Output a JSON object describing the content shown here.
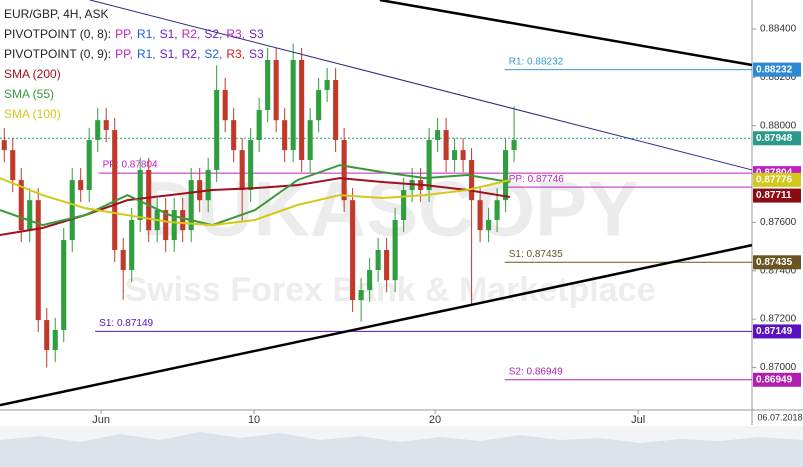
{
  "chart_data": {
    "type": "candlestick",
    "title": "EUR/GBP, 4H, ASK",
    "pivot_legend": [
      {
        "label": "PIVOTPOINT (0, 8):",
        "items": [
          "PP,",
          "R1,",
          "S1,",
          "R2,",
          "S2,",
          "R3,",
          "S3"
        ],
        "colors": [
          "#c020c0",
          "#1f5fd0",
          "#6a1fc9",
          "#c020c0",
          "#6a1fc9",
          "#c020c0",
          "#6a1fc9"
        ]
      },
      {
        "label": "PIVOTPOINT (0, 9):",
        "items": [
          "PP,",
          "R1,",
          "S1,",
          "R2,",
          "S2,",
          "R3,",
          "S3"
        ],
        "colors": [
          "#c020c0",
          "#1f5fd0",
          "#6a1fc9",
          "#6a1fc9",
          "#1f5fd0",
          "#d02020",
          "#6a1fc9"
        ]
      }
    ],
    "watermark": [
      "DUKASCOPY",
      "Swiss Forex Bank & Marketplace"
    ],
    "up_color": "#2e9e3e",
    "down_color": "#c0392b",
    "open": [
      0.8794,
      0.87899,
      0.87775,
      0.87568,
      0.87692,
      0.87196,
      0.87072,
      0.87155,
      0.87527,
      0.87775,
      0.87734,
      0.87941,
      0.88023,
      0.87982,
      0.87486,
      0.87403,
      0.8761,
      0.87817,
      0.87568,
      0.87651,
      0.87527,
      0.87651,
      0.87568,
      0.87775,
      0.87692,
      0.87817,
      0.88148,
      0.88023,
      0.87899,
      0.87734,
      0.87941,
      0.88065,
      0.88272,
      0.88023,
      0.87899,
      0.88272,
      0.87858,
      0.88023,
      0.88148,
      0.88189,
      0.87941,
      0.87692,
      0.87279,
      0.8732,
      0.87403,
      0.87486,
      0.87361,
      0.8761,
      0.87734,
      0.87775,
      0.87734,
      0.87941,
      0.87982,
      0.87858,
      0.87899,
      0.87858,
      0.87692,
      0.87568,
      0.8761,
      0.87692,
      0.87899
    ],
    "high": [
      0.8799,
      0.87949,
      0.87825,
      0.87742,
      0.87742,
      0.87246,
      0.87205,
      0.87577,
      0.87825,
      0.87825,
      0.87991,
      0.88073,
      0.88073,
      0.88032,
      0.87536,
      0.8766,
      0.87867,
      0.87867,
      0.87701,
      0.87701,
      0.87701,
      0.87701,
      0.87825,
      0.87825,
      0.87867,
      0.8825,
      0.88198,
      0.88073,
      0.87949,
      0.87991,
      0.88115,
      0.88322,
      0.88322,
      0.88073,
      0.8834,
      0.88322,
      0.88073,
      0.88198,
      0.88239,
      0.88239,
      0.87991,
      0.87742,
      0.8737,
      0.87453,
      0.87536,
      0.87536,
      0.8766,
      0.87784,
      0.87825,
      0.87825,
      0.87991,
      0.88032,
      0.88032,
      0.87949,
      0.87949,
      0.87908,
      0.87742,
      0.8766,
      0.87742,
      0.87949,
      0.8808
    ],
    "low": [
      0.87849,
      0.87725,
      0.87518,
      0.87518,
      0.87146,
      0.87,
      0.87022,
      0.87105,
      0.87477,
      0.87684,
      0.87684,
      0.87891,
      0.87932,
      0.87436,
      0.8728,
      0.87353,
      0.8756,
      0.87518,
      0.87518,
      0.87477,
      0.87477,
      0.87518,
      0.87518,
      0.87642,
      0.87642,
      0.87767,
      0.87973,
      0.87849,
      0.876,
      0.87684,
      0.87891,
      0.88015,
      0.87973,
      0.87849,
      0.87849,
      0.87808,
      0.87808,
      0.87973,
      0.88098,
      0.87891,
      0.87642,
      0.87229,
      0.8719,
      0.8727,
      0.87353,
      0.87311,
      0.87311,
      0.8756,
      0.87684,
      0.87684,
      0.87684,
      0.87891,
      0.87808,
      0.87808,
      0.87808,
      0.8726,
      0.87518,
      0.87518,
      0.8756,
      0.87642,
      0.87849
    ],
    "close": [
      0.87899,
      0.87775,
      0.87568,
      0.87692,
      0.87196,
      0.87072,
      0.87155,
      0.87527,
      0.87775,
      0.87734,
      0.87941,
      0.88023,
      0.87982,
      0.87486,
      0.87403,
      0.8761,
      0.87817,
      0.87568,
      0.87651,
      0.87527,
      0.87651,
      0.87568,
      0.87775,
      0.87692,
      0.87817,
      0.88148,
      0.88023,
      0.87899,
      0.87734,
      0.87941,
      0.88065,
      0.88272,
      0.88023,
      0.87899,
      0.88272,
      0.87858,
      0.88023,
      0.88148,
      0.88189,
      0.87941,
      0.87692,
      0.87279,
      0.8732,
      0.87403,
      0.87486,
      0.87361,
      0.8761,
      0.87734,
      0.87775,
      0.87734,
      0.87941,
      0.87982,
      0.87858,
      0.87899,
      0.87858,
      0.87692,
      0.87568,
      0.8761,
      0.87692,
      0.87899,
      0.87941
    ],
    "lines": [
      {
        "name": "SMA (200)",
        "color": "#a01020",
        "x": [
          0,
          5,
          10,
          15,
          20,
          25,
          30,
          35,
          40,
          45,
          50,
          55,
          60
        ],
        "values": [
          0.87548,
          0.87577,
          0.8763,
          0.87692,
          0.87713,
          0.87734,
          0.87742,
          0.87754,
          0.87783,
          0.87767,
          0.87754,
          0.87734,
          0.87705
        ]
      },
      {
        "name": "SMA (55)",
        "color": "#3a9a3a",
        "x": [
          0,
          5,
          10,
          15,
          20,
          25,
          30,
          35,
          40,
          45,
          50,
          55,
          60
        ],
        "values": [
          0.87651,
          0.87589,
          0.8763,
          0.87713,
          0.8763,
          0.87589,
          0.87651,
          0.87775,
          0.87837,
          0.87808,
          0.87783,
          0.87796,
          0.87767
        ]
      },
      {
        "name": "SMA (100)",
        "color": "#d4c81a",
        "x": [
          0,
          5,
          10,
          15,
          20,
          25,
          30,
          35,
          40,
          45,
          50,
          55,
          60
        ],
        "values": [
          0.87783,
          0.87713,
          0.87659,
          0.8763,
          0.87601,
          0.87589,
          0.8761,
          0.87672,
          0.87713,
          0.87701,
          0.87713,
          0.87734,
          0.87775
        ]
      }
    ],
    "trendlines": [
      {
        "color": "#000000",
        "width": 2.5,
        "x": [
          44.7,
          88.5
        ],
        "values": [
          0.8852,
          0.88251
        ]
      },
      {
        "color": "#000000",
        "width": 2.5,
        "x": [
          0,
          88.5
        ],
        "values": [
          0.86844,
          0.87506
        ]
      },
      {
        "color": "#2a2a80",
        "width": 1,
        "x": [
          10.6,
          88.5
        ],
        "values": [
          0.8852,
          0.87817
        ]
      }
    ],
    "levels": [
      {
        "label": "R1: 0.88232",
        "value": 0.88232,
        "start": 59.4,
        "color": "#3a9ad9"
      },
      {
        "label": "PP: 0.87804",
        "value": 0.87804,
        "start": 11.6,
        "color": "#c020c0"
      },
      {
        "label": "PP: 0.87746",
        "value": 0.87746,
        "start": 59.4,
        "color": "#c020c0"
      },
      {
        "label": "S1: 0.87435",
        "value": 0.87435,
        "start": 59.4,
        "color": "#6b5520"
      },
      {
        "label": "S1: 0.87149",
        "value": 0.87149,
        "start": 11.2,
        "color": "#5a10c0"
      },
      {
        "label": "S2: 0.86949",
        "value": 0.86949,
        "start": 59.4,
        "color": "#b020b0"
      }
    ],
    "last_price": 0.87948,
    "price_tags": [
      {
        "value": 0.88232,
        "color": "#2a8ad4"
      },
      {
        "value": 0.87948,
        "color": "#2a9a8a"
      },
      {
        "value": 0.87804,
        "color": "#c020c0"
      },
      {
        "value": 0.87776,
        "color": "#d4c81a"
      },
      {
        "value": 0.87711,
        "color": "#8b0a14"
      },
      {
        "value": 0.87435,
        "color": "#6b5520"
      },
      {
        "value": 0.87149,
        "color": "#5a10c0"
      },
      {
        "value": 0.86949,
        "color": "#b020b0"
      }
    ],
    "xlim": [
      0,
      88.5
    ],
    "xticks": [
      {
        "value": 11.9,
        "label": "Jun"
      },
      {
        "value": 29.9,
        "label": "10"
      },
      {
        "value": 51.2,
        "label": "20"
      },
      {
        "value": 75.1,
        "label": "Jul"
      }
    ],
    "date_label": "06.07.2018",
    "ylim": [
      0.86824,
      0.8852
    ],
    "yticks": [
      {
        "value": 0.884,
        "label": "0.88400"
      },
      {
        "value": 0.882,
        "label": "0.88200"
      },
      {
        "value": 0.88,
        "label": "0.88000"
      },
      {
        "value": 0.878,
        "label": "0.87800"
      },
      {
        "value": 0.876,
        "label": "0.87600"
      },
      {
        "value": 0.874,
        "label": "0.87400"
      },
      {
        "value": 0.872,
        "label": "0.87200"
      },
      {
        "value": 0.87,
        "label": "0.87000"
      }
    ]
  }
}
